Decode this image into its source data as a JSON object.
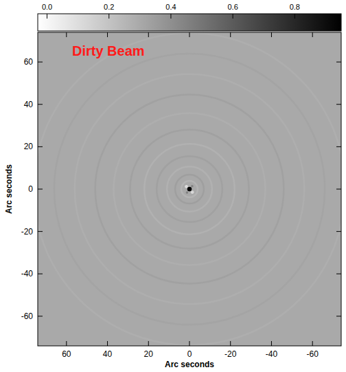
{
  "chart_data": {
    "type": "image",
    "title": "Dirty Beam",
    "x_label": "Arc seconds",
    "y_label": "Arc seconds",
    "xlim": [
      74,
      -74
    ],
    "ylim": [
      -74,
      74
    ],
    "xticks": [
      60,
      40,
      20,
      0,
      -20,
      -40,
      -60
    ],
    "yticks": [
      -60,
      -40,
      -20,
      0,
      20,
      40,
      60
    ],
    "colorbar": {
      "range": [
        -0.03,
        0.95
      ],
      "ticks": [
        {
          "value": 0,
          "label": "0.0"
        },
        {
          "value": 0.2,
          "label": "0.2"
        },
        {
          "value": 0.4,
          "label": "0.4"
        },
        {
          "value": 0.6,
          "label": "0.6"
        },
        {
          "value": 0.8,
          "label": "0.8"
        }
      ]
    },
    "background": 0.3,
    "rings": [
      {
        "radius": 4,
        "value": 0.26
      },
      {
        "radius": 7,
        "value": 0.34
      },
      {
        "radius": 11,
        "value": 0.27
      },
      {
        "radius": 16,
        "value": 0.33
      },
      {
        "radius": 22,
        "value": 0.27
      },
      {
        "radius": 29,
        "value": 0.33
      },
      {
        "radius": 37,
        "value": 0.28
      },
      {
        "radius": 46,
        "value": 0.33
      },
      {
        "radius": 56,
        "value": 0.28
      },
      {
        "radius": 66,
        "value": 0.32
      },
      {
        "radius": 76,
        "value": 0.28
      }
    ],
    "sources": [
      {
        "x": 1.5,
        "y": 1.2,
        "value": 0.1,
        "size": 0.8
      },
      {
        "x": -1.4,
        "y": -1.5,
        "value": 0.12,
        "size": 0.8
      },
      {
        "x": 1.2,
        "y": -1.6,
        "value": 0.45,
        "size": 0.6
      },
      {
        "x": -1.3,
        "y": 1.4,
        "value": 0.45,
        "size": 0.6
      },
      {
        "x": 0,
        "y": 0,
        "value": 1.0,
        "size": 1.1
      }
    ]
  }
}
